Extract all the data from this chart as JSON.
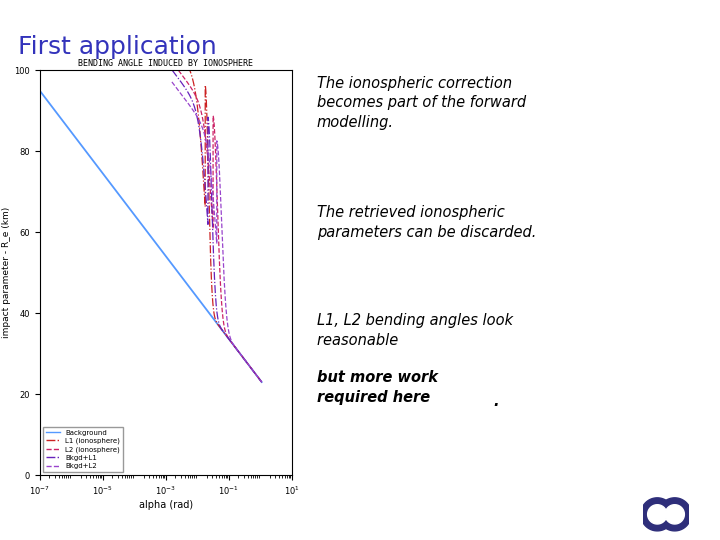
{
  "title": "First application",
  "title_color": "#3333bb",
  "slide_bg": "#ffffff",
  "top_bar_color": "#2e2e7a",
  "bottom_bar_color": "#2e2e7a",
  "chart_title": "BENDING ANGLE INDUCED BY IONOSPHERE",
  "xlabel": "alpha (rad)",
  "ylabel": "impact parameter - R_e (km)",
  "ylim": [
    0,
    100
  ],
  "yticks": [
    0,
    20,
    40,
    60,
    80,
    100
  ],
  "text1": "The ionospheric correction\nbecomes part of the forward\nmodelling.",
  "text2": "The retrieved ionospheric\nparameters can be discarded.",
  "text3a": "L1, L2 bending angles look\nreasonable ",
  "text3b": "but more work\nrequired here",
  "text3c": ".",
  "legend_labels": [
    "Background",
    "L1 (ionosphere)",
    "L2 (ionosphere)",
    "Bkgd+L1",
    "Bkgd+L2"
  ],
  "line_colors": [
    "#5599ff",
    "#cc2222",
    "#cc2266",
    "#6622bb",
    "#9944cc"
  ],
  "line_styles": [
    "-",
    "-.",
    "--",
    "-.",
    "--"
  ],
  "logo_color": "#2e2e7a"
}
